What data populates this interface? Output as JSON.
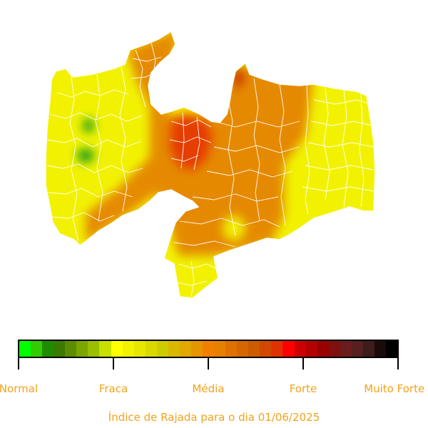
{
  "legend": {
    "labels": [
      "Normal",
      "Fraca",
      "Média",
      "Forte",
      "Muito Forte"
    ],
    "colors": [
      "#00ff00",
      "#33cc00",
      "#1f8c00",
      "#3a7a00",
      "#5c8c00",
      "#7aa600",
      "#99bf00",
      "#c7e000",
      "#ffff00",
      "#f2f200",
      "#e6e600",
      "#d9d900",
      "#cccc00",
      "#d9b800",
      "#e0a800",
      "#e59500",
      "#f28000",
      "#e87f00",
      "#e07000",
      "#d66600",
      "#cc5c00",
      "#d24800",
      "#e03200",
      "#ff0000",
      "#cc0000",
      "#b30000",
      "#990000",
      "#801010",
      "#6b1c1c",
      "#552020",
      "#3d1c1c",
      "#1c0a0a",
      "#000000"
    ],
    "label_color": "#f4a21a"
  },
  "caption": "Índice de Rajada para o dia 01/06/2025",
  "map": {
    "region_colors": {
      "yellow": "#f2f200",
      "orange": "#e58a00",
      "red": "#e63c00",
      "deep_red": "#cc2a00",
      "green": "#1e9e1e",
      "boundary": "#ffffff"
    }
  }
}
